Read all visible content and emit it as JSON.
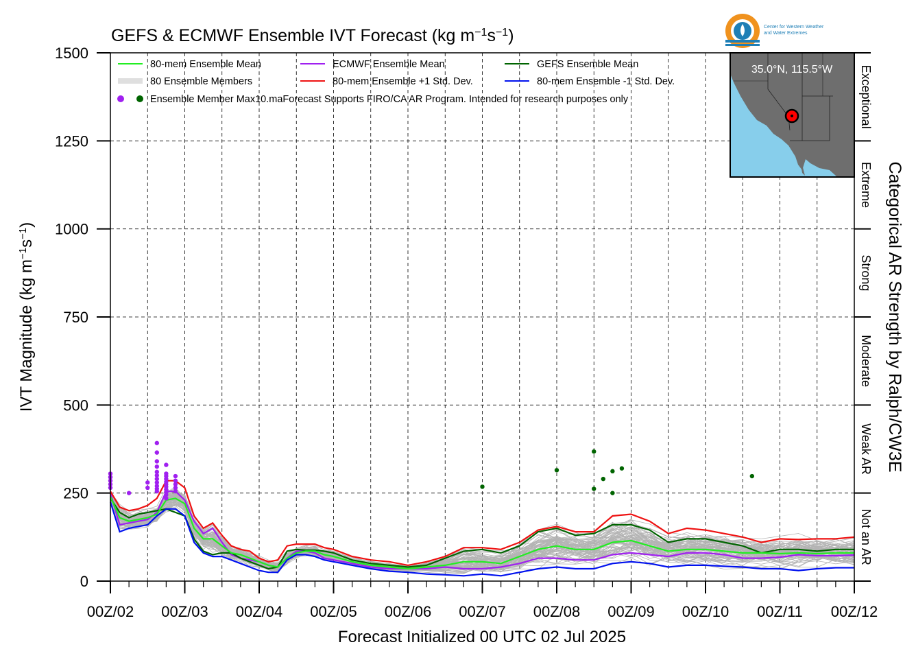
{
  "chart_data": {
    "type": "line",
    "title": "GEFS & ECMWF Ensemble IVT Forecast (kg m",
    "title_exp1": "−1",
    "title_mid": "s",
    "title_exp2": "−1",
    "title_end": ")",
    "ylabel": "IVT Magnitude (kg m",
    "ylabel_exp1": "−1",
    "ylabel_mid": "s",
    "ylabel_exp2": "−1",
    "ylabel_end": ")",
    "xlabel": "Forecast Initialized 00 UTC 02 Jul 2025",
    "right_label": "Categorical AR Strength by Ralph/CW3E",
    "ylim": [
      0,
      1500
    ],
    "xlim": [
      0,
      240
    ],
    "x_units": "forecast hour",
    "x_tick_labels": [
      "00Z/02",
      "00Z/03",
      "00Z/04",
      "00Z/05",
      "00Z/06",
      "00Z/07",
      "00Z/08",
      "00Z/09",
      "00Z/10",
      "00Z/11",
      "00Z/12"
    ],
    "y_ticks": [
      0,
      250,
      500,
      750,
      1000,
      1250,
      1500
    ],
    "grid": true,
    "legend_position": "top-left",
    "categories_ar": [
      {
        "label": "Not an AR",
        "range": [
          0,
          250
        ]
      },
      {
        "label": "Weak AR",
        "range": [
          250,
          500
        ]
      },
      {
        "label": "Moderate",
        "range": [
          500,
          750
        ]
      },
      {
        "label": "Strong",
        "range": [
          750,
          1000
        ]
      },
      {
        "label": "Extreme",
        "range": [
          1000,
          1250
        ]
      },
      {
        "label": "Exceptional",
        "range": [
          1250,
          1500
        ]
      }
    ],
    "legend": [
      {
        "label": "80-mem Ensemble Mean",
        "color": "#22ee22",
        "kind": "line"
      },
      {
        "label": "80 Ensemble Members",
        "color": "#aaaaaa",
        "kind": "members"
      },
      {
        "label": "Ensemble Member Max",
        "color": "#a020f0",
        "color2": "#006400",
        "kind": "dots"
      },
      {
        "label": "ECMWF Ensemble Mean",
        "color": "#a020f0",
        "kind": "line"
      },
      {
        "label": "80-mem Ensemble +1 Std. Dev.",
        "color": "#ee1111",
        "kind": "line"
      },
      {
        "label": "GEFS Ensemble Mean",
        "color": "#006400",
        "kind": "line"
      },
      {
        "label": "80-mem Ensemble -1 Std. Dev.",
        "color": "#0011ee",
        "kind": "line"
      }
    ],
    "note": "10.maForecast Supports FIRO/CA AR Program. Intended for research purposes only",
    "inset": {
      "label": "35.0°N, 115.5°W"
    },
    "logo": {
      "line1": "Center for Western Weather",
      "line2": "and Water Extremes"
    },
    "series": [
      {
        "name": "80-mem Ensemble Mean",
        "color": "#22ee22",
        "x": [
          0,
          3,
          6,
          9,
          12,
          15,
          18,
          21,
          24,
          27,
          30,
          33,
          36,
          39,
          42,
          45,
          48,
          51,
          54,
          57,
          60,
          63,
          66,
          69,
          72,
          78,
          84,
          90,
          96,
          102,
          108,
          114,
          120,
          126,
          132,
          138,
          144,
          150,
          156,
          162,
          168,
          174,
          180,
          186,
          192,
          198,
          204,
          210,
          216,
          222,
          228,
          234,
          240
        ],
        "y": [
          240,
          180,
          170,
          175,
          180,
          190,
          230,
          235,
          220,
          150,
          120,
          120,
          100,
          80,
          75,
          65,
          55,
          45,
          40,
          65,
          80,
          85,
          85,
          75,
          70,
          55,
          45,
          40,
          35,
          40,
          45,
          55,
          55,
          50,
          70,
          90,
          100,
          90,
          90,
          110,
          115,
          100,
          85,
          90,
          90,
          85,
          80,
          80,
          78,
          80,
          78,
          80,
          80
        ]
      },
      {
        "name": "ECMWF Ensemble Mean",
        "color": "#a020f0",
        "x": [
          0,
          3,
          6,
          9,
          12,
          15,
          18,
          21,
          24,
          27,
          30,
          33,
          36,
          39,
          42,
          45,
          48,
          51,
          54,
          57,
          60,
          63,
          66,
          69,
          72,
          78,
          84,
          90,
          96,
          102,
          108,
          114,
          120,
          126,
          132,
          138,
          144,
          150,
          156,
          162,
          168,
          174,
          180,
          186,
          192,
          198,
          204,
          210,
          216,
          222,
          228,
          234,
          240
        ],
        "y": [
          250,
          160,
          165,
          170,
          175,
          195,
          255,
          255,
          230,
          170,
          135,
          150,
          110,
          75,
          65,
          60,
          55,
          45,
          40,
          65,
          85,
          85,
          80,
          65,
          60,
          50,
          40,
          35,
          35,
          35,
          40,
          35,
          35,
          40,
          50,
          65,
          65,
          60,
          60,
          75,
          80,
          75,
          70,
          80,
          80,
          75,
          65,
          65,
          68,
          75,
          72,
          72,
          74
        ]
      },
      {
        "name": "GEFS Ensemble Mean",
        "color": "#006400",
        "x": [
          0,
          3,
          6,
          9,
          12,
          15,
          18,
          21,
          24,
          27,
          30,
          33,
          36,
          39,
          42,
          45,
          48,
          51,
          54,
          57,
          60,
          63,
          66,
          69,
          72,
          78,
          84,
          90,
          96,
          102,
          108,
          114,
          120,
          126,
          132,
          138,
          144,
          150,
          156,
          162,
          168,
          174,
          180,
          186,
          192,
          198,
          204,
          210,
          216,
          222,
          228,
          234,
          240
        ],
        "y": [
          235,
          195,
          180,
          190,
          195,
          200,
          205,
          195,
          185,
          120,
          85,
          75,
          80,
          80,
          65,
          55,
          45,
          35,
          40,
          85,
          90,
          88,
          88,
          85,
          80,
          60,
          50,
          45,
          40,
          45,
          65,
          85,
          90,
          80,
          100,
          140,
          150,
          130,
          135,
          160,
          160,
          145,
          110,
          120,
          120,
          110,
          100,
          80,
          90,
          90,
          85,
          90,
          90
        ]
      },
      {
        "name": "80-mem Ensemble +1 Std. Dev.",
        "color": "#ee1111",
        "x": [
          0,
          3,
          6,
          9,
          12,
          15,
          18,
          21,
          24,
          27,
          30,
          33,
          36,
          39,
          42,
          45,
          48,
          51,
          54,
          57,
          60,
          63,
          66,
          69,
          72,
          78,
          84,
          90,
          96,
          102,
          108,
          114,
          120,
          126,
          132,
          138,
          144,
          150,
          156,
          162,
          168,
          174,
          180,
          186,
          192,
          198,
          204,
          210,
          216,
          222,
          228,
          234,
          240
        ],
        "y": [
          255,
          210,
          200,
          205,
          215,
          235,
          285,
          285,
          265,
          185,
          150,
          165,
          130,
          100,
          90,
          85,
          65,
          55,
          60,
          100,
          105,
          105,
          105,
          95,
          90,
          70,
          60,
          55,
          45,
          55,
          70,
          95,
          95,
          90,
          110,
          145,
          155,
          140,
          140,
          185,
          190,
          170,
          135,
          150,
          145,
          135,
          125,
          110,
          120,
          118,
          120,
          120,
          125
        ]
      },
      {
        "name": "80-mem Ensemble -1 Std. Dev.",
        "color": "#0011ee",
        "x": [
          0,
          3,
          6,
          9,
          12,
          15,
          18,
          21,
          24,
          27,
          30,
          33,
          36,
          39,
          42,
          45,
          48,
          51,
          54,
          57,
          60,
          63,
          66,
          69,
          72,
          78,
          84,
          90,
          96,
          102,
          108,
          114,
          120,
          126,
          132,
          138,
          144,
          150,
          156,
          162,
          168,
          174,
          180,
          186,
          192,
          198,
          204,
          210,
          216,
          222,
          228,
          234,
          240
        ],
        "y": [
          225,
          140,
          150,
          155,
          160,
          185,
          205,
          205,
          185,
          110,
          80,
          70,
          70,
          60,
          50,
          40,
          30,
          25,
          25,
          60,
          75,
          75,
          70,
          60,
          55,
          45,
          35,
          28,
          25,
          20,
          18,
          15,
          20,
          15,
          25,
          35,
          40,
          35,
          35,
          50,
          55,
          50,
          40,
          45,
          45,
          42,
          40,
          35,
          35,
          30,
          35,
          38,
          38
        ]
      }
    ],
    "member_max_points": [
      {
        "group": "ECMWF",
        "points": [
          [
            0,
            305
          ],
          [
            0,
            295
          ],
          [
            0,
            285
          ],
          [
            0,
            275
          ],
          [
            0,
            265
          ],
          [
            6,
            250
          ],
          [
            12,
            280
          ],
          [
            12,
            265
          ],
          [
            15,
            392
          ],
          [
            15,
            365
          ],
          [
            15,
            340
          ],
          [
            15,
            325
          ],
          [
            15,
            310
          ],
          [
            15,
            300
          ],
          [
            15,
            290
          ],
          [
            15,
            280
          ],
          [
            15,
            270
          ],
          [
            15,
            262
          ],
          [
            15,
            255
          ],
          [
            18,
            330
          ],
          [
            18,
            305
          ],
          [
            18,
            298
          ],
          [
            18,
            290
          ],
          [
            18,
            282
          ],
          [
            18,
            275
          ],
          [
            18,
            268
          ],
          [
            18,
            260
          ],
          [
            18,
            252
          ],
          [
            18,
            245
          ],
          [
            18,
            235
          ],
          [
            21,
            298
          ],
          [
            21,
            285
          ],
          [
            21,
            275
          ],
          [
            21,
            265
          ],
          [
            21,
            255
          ]
        ]
      },
      {
        "group": "GEFS",
        "points": [
          [
            120,
            268
          ],
          [
            144,
            315
          ],
          [
            156,
            368
          ],
          [
            156,
            262
          ],
          [
            159,
            290
          ],
          [
            162,
            312
          ],
          [
            162,
            250
          ],
          [
            165,
            320
          ],
          [
            207,
            298
          ]
        ]
      }
    ]
  }
}
